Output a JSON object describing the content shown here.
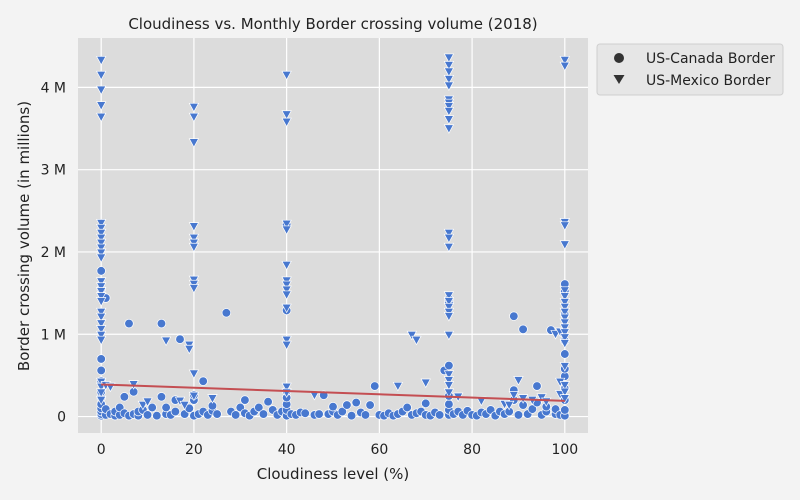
{
  "chart_data": {
    "type": "scatter",
    "title": "Cloudiness vs. Monthly Border crossing volume (2018)",
    "xlabel": "Cloudiness level (%)",
    "ylabel": "Border crossing volume (in millions)",
    "xlim": [
      -5,
      105
    ],
    "ylim": [
      -200000,
      4600000
    ],
    "xticks": [
      0,
      20,
      40,
      60,
      80,
      100
    ],
    "xtick_labels": [
      "0",
      "20",
      "40",
      "60",
      "80",
      "100"
    ],
    "yticks": [
      0,
      1000000,
      2000000,
      3000000,
      4000000
    ],
    "ytick_labels": [
      "0",
      "1 M",
      "2 M",
      "3 M",
      "4 M"
    ],
    "grid": true,
    "legend_position": "outside-top-right",
    "colors": {
      "marker": "#4878cf",
      "trendline": "#c44e52",
      "plot_bg": "#dcdcdc",
      "page_bg": "#f3f3f3",
      "grid": "#ffffff"
    },
    "trendline": {
      "x": [
        0,
        100
      ],
      "y": [
        390000,
        190000
      ]
    },
    "series": [
      {
        "name": "US-Canada Border",
        "marker": "circle",
        "points": [
          [
            0,
            10000
          ],
          [
            0,
            30000
          ],
          [
            0,
            60000
          ],
          [
            0,
            100000
          ],
          [
            0,
            150000
          ],
          [
            0,
            230000
          ],
          [
            0,
            300000
          ],
          [
            0,
            430000
          ],
          [
            0,
            560000
          ],
          [
            0,
            700000
          ],
          [
            0,
            1550000
          ],
          [
            0,
            1770000
          ],
          [
            1,
            20000
          ],
          [
            1,
            90000
          ],
          [
            1,
            1440000
          ],
          [
            2,
            30000
          ],
          [
            3,
            10000
          ],
          [
            3,
            60000
          ],
          [
            4,
            20000
          ],
          [
            4,
            110000
          ],
          [
            5,
            40000
          ],
          [
            5,
            240000
          ],
          [
            6,
            10000
          ],
          [
            6,
            1130000
          ],
          [
            7,
            30000
          ],
          [
            7,
            300000
          ],
          [
            8,
            10000
          ],
          [
            8,
            60000
          ],
          [
            9,
            80000
          ],
          [
            10,
            20000
          ],
          [
            11,
            110000
          ],
          [
            12,
            10000
          ],
          [
            13,
            240000
          ],
          [
            13,
            1130000
          ],
          [
            14,
            30000
          ],
          [
            14,
            110000
          ],
          [
            15,
            20000
          ],
          [
            16,
            60000
          ],
          [
            16,
            200000
          ],
          [
            17,
            940000
          ],
          [
            18,
            30000
          ],
          [
            19,
            100000
          ],
          [
            20,
            10000
          ],
          [
            20,
            200000
          ],
          [
            20,
            260000
          ],
          [
            21,
            30000
          ],
          [
            22,
            60000
          ],
          [
            22,
            430000
          ],
          [
            23,
            20000
          ],
          [
            24,
            70000
          ],
          [
            24,
            130000
          ],
          [
            25,
            30000
          ],
          [
            27,
            1260000
          ],
          [
            28,
            60000
          ],
          [
            29,
            20000
          ],
          [
            30,
            110000
          ],
          [
            31,
            40000
          ],
          [
            31,
            200000
          ],
          [
            32,
            10000
          ],
          [
            33,
            60000
          ],
          [
            34,
            110000
          ],
          [
            35,
            30000
          ],
          [
            36,
            180000
          ],
          [
            37,
            80000
          ],
          [
            38,
            20000
          ],
          [
            39,
            60000
          ],
          [
            40,
            10000
          ],
          [
            40,
            80000
          ],
          [
            40,
            150000
          ],
          [
            40,
            230000
          ],
          [
            40,
            310000
          ],
          [
            40,
            1290000
          ],
          [
            40,
            2330000
          ],
          [
            41,
            30000
          ],
          [
            42,
            20000
          ],
          [
            43,
            50000
          ],
          [
            44,
            40000
          ],
          [
            46,
            20000
          ],
          [
            47,
            30000
          ],
          [
            48,
            260000
          ],
          [
            49,
            30000
          ],
          [
            50,
            60000
          ],
          [
            50,
            120000
          ],
          [
            51,
            20000
          ],
          [
            52,
            60000
          ],
          [
            53,
            140000
          ],
          [
            54,
            10000
          ],
          [
            55,
            170000
          ],
          [
            56,
            50000
          ],
          [
            57,
            20000
          ],
          [
            58,
            140000
          ],
          [
            59,
            370000
          ],
          [
            60,
            20000
          ],
          [
            61,
            10000
          ],
          [
            62,
            40000
          ],
          [
            63,
            10000
          ],
          [
            64,
            30000
          ],
          [
            65,
            60000
          ],
          [
            66,
            110000
          ],
          [
            67,
            20000
          ],
          [
            68,
            40000
          ],
          [
            69,
            60000
          ],
          [
            70,
            20000
          ],
          [
            70,
            160000
          ],
          [
            71,
            10000
          ],
          [
            72,
            50000
          ],
          [
            73,
            20000
          ],
          [
            74,
            560000
          ],
          [
            75,
            20000
          ],
          [
            75,
            80000
          ],
          [
            75,
            150000
          ],
          [
            75,
            250000
          ],
          [
            75,
            620000
          ],
          [
            75,
            1390000
          ],
          [
            75,
            1430000
          ],
          [
            76,
            30000
          ],
          [
            77,
            60000
          ],
          [
            78,
            20000
          ],
          [
            79,
            70000
          ],
          [
            80,
            20000
          ],
          [
            81,
            10000
          ],
          [
            82,
            50000
          ],
          [
            83,
            30000
          ],
          [
            84,
            80000
          ],
          [
            85,
            10000
          ],
          [
            86,
            60000
          ],
          [
            87,
            30000
          ],
          [
            88,
            60000
          ],
          [
            89,
            200000
          ],
          [
            89,
            320000
          ],
          [
            89,
            1220000
          ],
          [
            90,
            20000
          ],
          [
            91,
            140000
          ],
          [
            91,
            1060000
          ],
          [
            92,
            30000
          ],
          [
            93,
            90000
          ],
          [
            94,
            370000
          ],
          [
            94,
            170000
          ],
          [
            95,
            20000
          ],
          [
            96,
            60000
          ],
          [
            96,
            120000
          ],
          [
            97,
            1050000
          ],
          [
            98,
            30000
          ],
          [
            98,
            90000
          ],
          [
            99,
            20000
          ],
          [
            100,
            10000
          ],
          [
            100,
            80000
          ],
          [
            100,
            200000
          ],
          [
            100,
            340000
          ],
          [
            100,
            490000
          ],
          [
            100,
            580000
          ],
          [
            100,
            760000
          ],
          [
            100,
            920000
          ],
          [
            100,
            1240000
          ],
          [
            100,
            1520000
          ],
          [
            100,
            1610000
          ]
        ]
      },
      {
        "name": "US-Mexico Border",
        "marker": "triangle-down",
        "points": [
          [
            0,
            4330000
          ],
          [
            0,
            4150000
          ],
          [
            0,
            3970000
          ],
          [
            0,
            3780000
          ],
          [
            0,
            3640000
          ],
          [
            0,
            2350000
          ],
          [
            0,
            2290000
          ],
          [
            0,
            2230000
          ],
          [
            0,
            2170000
          ],
          [
            0,
            2110000
          ],
          [
            0,
            2050000
          ],
          [
            0,
            1990000
          ],
          [
            0,
            1930000
          ],
          [
            0,
            1640000
          ],
          [
            0,
            1580000
          ],
          [
            0,
            1520000
          ],
          [
            0,
            1460000
          ],
          [
            0,
            1400000
          ],
          [
            0,
            1270000
          ],
          [
            0,
            1210000
          ],
          [
            0,
            1130000
          ],
          [
            0,
            1060000
          ],
          [
            0,
            990000
          ],
          [
            0,
            930000
          ],
          [
            0,
            420000
          ],
          [
            0,
            360000
          ],
          [
            0,
            290000
          ],
          [
            0,
            200000
          ],
          [
            1,
            380000
          ],
          [
            2,
            360000
          ],
          [
            7,
            390000
          ],
          [
            9,
            140000
          ],
          [
            10,
            180000
          ],
          [
            14,
            920000
          ],
          [
            17,
            190000
          ],
          [
            18,
            140000
          ],
          [
            19,
            870000
          ],
          [
            19,
            820000
          ],
          [
            20,
            3760000
          ],
          [
            20,
            3640000
          ],
          [
            20,
            3330000
          ],
          [
            20,
            2310000
          ],
          [
            20,
            2170000
          ],
          [
            20,
            2110000
          ],
          [
            20,
            2060000
          ],
          [
            20,
            1660000
          ],
          [
            20,
            1610000
          ],
          [
            20,
            1560000
          ],
          [
            20,
            520000
          ],
          [
            20,
            250000
          ],
          [
            24,
            220000
          ],
          [
            40,
            4150000
          ],
          [
            40,
            3670000
          ],
          [
            40,
            3580000
          ],
          [
            40,
            2340000
          ],
          [
            40,
            2270000
          ],
          [
            40,
            1840000
          ],
          [
            40,
            1650000
          ],
          [
            40,
            1600000
          ],
          [
            40,
            1540000
          ],
          [
            40,
            1480000
          ],
          [
            40,
            1320000
          ],
          [
            40,
            930000
          ],
          [
            40,
            870000
          ],
          [
            40,
            360000
          ],
          [
            40,
            290000
          ],
          [
            46,
            260000
          ],
          [
            64,
            370000
          ],
          [
            67,
            990000
          ],
          [
            68,
            930000
          ],
          [
            70,
            410000
          ],
          [
            75,
            4360000
          ],
          [
            75,
            4270000
          ],
          [
            75,
            4190000
          ],
          [
            75,
            4100000
          ],
          [
            75,
            4020000
          ],
          [
            75,
            3850000
          ],
          [
            75,
            3810000
          ],
          [
            75,
            3770000
          ],
          [
            75,
            3710000
          ],
          [
            75,
            3610000
          ],
          [
            75,
            3500000
          ],
          [
            75,
            2230000
          ],
          [
            75,
            2170000
          ],
          [
            75,
            2060000
          ],
          [
            75,
            1470000
          ],
          [
            75,
            1400000
          ],
          [
            75,
            1330000
          ],
          [
            75,
            1270000
          ],
          [
            75,
            1220000
          ],
          [
            75,
            990000
          ],
          [
            75,
            510000
          ],
          [
            75,
            440000
          ],
          [
            75,
            380000
          ],
          [
            75,
            290000
          ],
          [
            77,
            240000
          ],
          [
            82,
            190000
          ],
          [
            87,
            150000
          ],
          [
            88,
            140000
          ],
          [
            89,
            260000
          ],
          [
            90,
            440000
          ],
          [
            91,
            220000
          ],
          [
            93,
            200000
          ],
          [
            95,
            230000
          ],
          [
            96,
            180000
          ],
          [
            98,
            1000000
          ],
          [
            99,
            1030000
          ],
          [
            99,
            270000
          ],
          [
            99,
            420000
          ],
          [
            100,
            4330000
          ],
          [
            100,
            4260000
          ],
          [
            100,
            2360000
          ],
          [
            100,
            2320000
          ],
          [
            100,
            2090000
          ],
          [
            100,
            1530000
          ],
          [
            100,
            1460000
          ],
          [
            100,
            1390000
          ],
          [
            100,
            1330000
          ],
          [
            100,
            1270000
          ],
          [
            100,
            1200000
          ],
          [
            100,
            1140000
          ],
          [
            100,
            1080000
          ],
          [
            100,
            1020000
          ],
          [
            100,
            960000
          ],
          [
            100,
            890000
          ],
          [
            100,
            610000
          ],
          [
            100,
            380000
          ],
          [
            100,
            300000
          ],
          [
            100,
            220000
          ]
        ]
      }
    ]
  }
}
